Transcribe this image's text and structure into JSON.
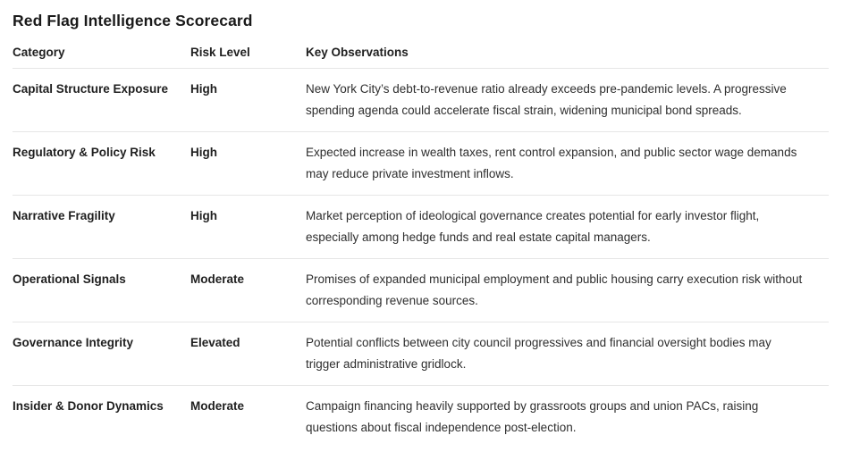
{
  "title": "Red Flag Intelligence Scorecard",
  "table": {
    "headers": [
      "Category",
      "Risk Level",
      "Key Observations"
    ],
    "rows": [
      {
        "category": "Capital Structure Exposure",
        "risk_level": "High",
        "observation": "New York City’s debt-to-revenue ratio already exceeds pre-pandemic levels. A progressive spending agenda could accelerate fiscal strain, widening municipal bond spreads."
      },
      {
        "category": "Regulatory & Policy Risk",
        "risk_level": "High",
        "observation": "Expected increase in wealth taxes, rent control expansion, and public sector wage demands may reduce private investment inflows."
      },
      {
        "category": "Narrative Fragility",
        "risk_level": "High",
        "observation": "Market perception of ideological governance creates potential for early investor flight, especially among hedge funds and real estate capital managers."
      },
      {
        "category": "Operational Signals",
        "risk_level": "Moderate",
        "observation": "Promises of expanded municipal employment and public housing carry execution risk without corresponding revenue sources."
      },
      {
        "category": "Governance Integrity",
        "risk_level": "Elevated",
        "observation": "Potential conflicts between city council progressives and financial oversight bodies may trigger administrative gridlock."
      },
      {
        "category": "Insider & Donor Dynamics",
        "risk_level": "Moderate",
        "observation": "Campaign financing heavily supported by grassroots groups and union PACs, raising questions about fiscal independence post-election."
      }
    ]
  },
  "colors": {
    "background": "#ffffff",
    "text_primary": "#1f1f1f",
    "text_body": "#2e2e2e",
    "divider": "#e6e6e6"
  }
}
